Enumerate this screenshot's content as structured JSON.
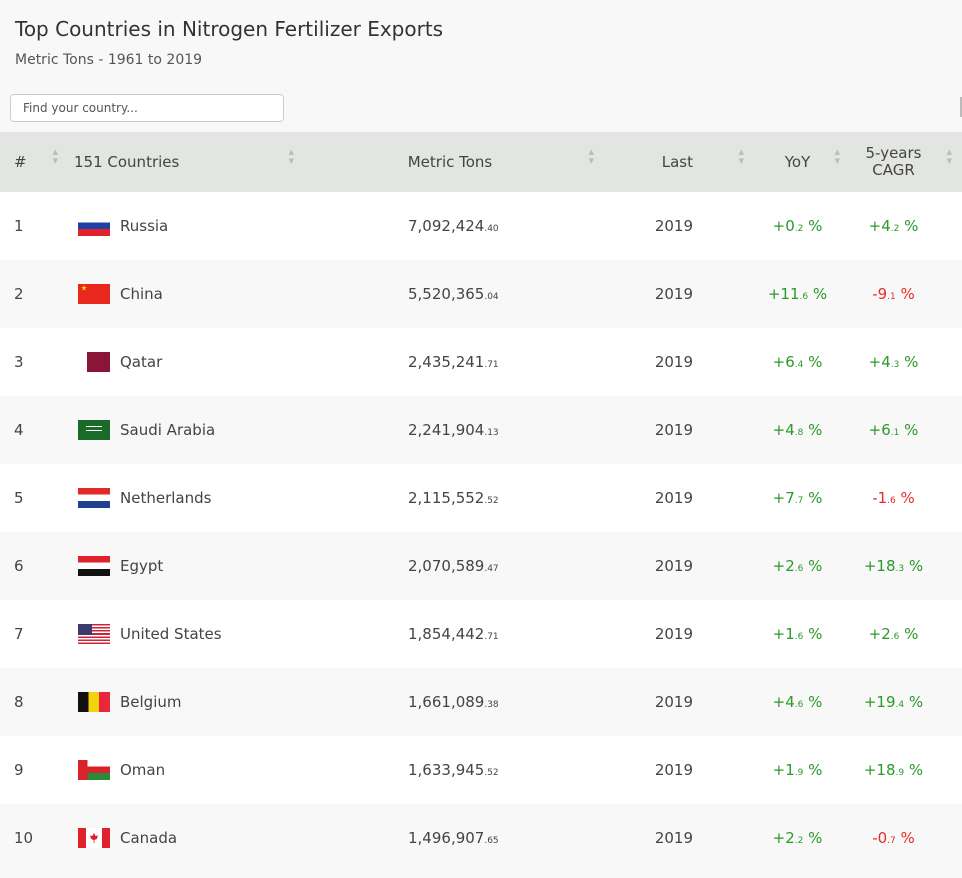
{
  "header": {
    "title": "Top Countries in Nitrogen Fertilizer Exports",
    "subtitle": "Metric Tons - 1961 to 2019"
  },
  "search": {
    "placeholder": "Find your country..."
  },
  "columns": {
    "rank": "#",
    "country": "151 Countries",
    "value": "Metric Tons",
    "last": "Last",
    "yoy": "YoY",
    "cagr_line1": "5-years",
    "cagr_line2": "CAGR"
  },
  "colors": {
    "positive": "#2a9a2a",
    "negative": "#e82a2a",
    "header_bg": "#e2e5e1"
  },
  "rows": [
    {
      "rank": "1",
      "country": "Russia",
      "flag": "russia-flag",
      "int": "7,092,424",
      "dec": ".40",
      "last": "2019",
      "yoy_int": "+0",
      "yoy_dec": ".2",
      "cagr_int": "+4",
      "cagr_dec": ".2"
    },
    {
      "rank": "2",
      "country": "China",
      "flag": "china-flag",
      "int": "5,520,365",
      "dec": ".04",
      "last": "2019",
      "yoy_int": "+11",
      "yoy_dec": ".6",
      "cagr_int": "-9",
      "cagr_dec": ".1"
    },
    {
      "rank": "3",
      "country": "Qatar",
      "flag": "qatar-flag",
      "int": "2,435,241",
      "dec": ".71",
      "last": "2019",
      "yoy_int": "+6",
      "yoy_dec": ".4",
      "cagr_int": "+4",
      "cagr_dec": ".3"
    },
    {
      "rank": "4",
      "country": "Saudi Arabia",
      "flag": "saudi-arabia-flag",
      "int": "2,241,904",
      "dec": ".13",
      "last": "2019",
      "yoy_int": "+4",
      "yoy_dec": ".8",
      "cagr_int": "+6",
      "cagr_dec": ".1"
    },
    {
      "rank": "5",
      "country": "Netherlands",
      "flag": "netherlands-flag",
      "int": "2,115,552",
      "dec": ".52",
      "last": "2019",
      "yoy_int": "+7",
      "yoy_dec": ".7",
      "cagr_int": "-1",
      "cagr_dec": ".6"
    },
    {
      "rank": "6",
      "country": "Egypt",
      "flag": "egypt-flag",
      "int": "2,070,589",
      "dec": ".47",
      "last": "2019",
      "yoy_int": "+2",
      "yoy_dec": ".6",
      "cagr_int": "+18",
      "cagr_dec": ".3"
    },
    {
      "rank": "7",
      "country": "United States",
      "flag": "united-states-flag",
      "int": "1,854,442",
      "dec": ".71",
      "last": "2019",
      "yoy_int": "+1",
      "yoy_dec": ".6",
      "cagr_int": "+2",
      "cagr_dec": ".6"
    },
    {
      "rank": "8",
      "country": "Belgium",
      "flag": "belgium-flag",
      "int": "1,661,089",
      "dec": ".38",
      "last": "2019",
      "yoy_int": "+4",
      "yoy_dec": ".6",
      "cagr_int": "+19",
      "cagr_dec": ".4"
    },
    {
      "rank": "9",
      "country": "Oman",
      "flag": "oman-flag",
      "int": "1,633,945",
      "dec": ".52",
      "last": "2019",
      "yoy_int": "+1",
      "yoy_dec": ".9",
      "cagr_int": "+18",
      "cagr_dec": ".9"
    },
    {
      "rank": "10",
      "country": "Canada",
      "flag": "canada-flag",
      "int": "1,496,907",
      "dec": ".65",
      "last": "2019",
      "yoy_int": "+2",
      "yoy_dec": ".2",
      "cagr_int": "-0",
      "cagr_dec": ".7"
    }
  ]
}
